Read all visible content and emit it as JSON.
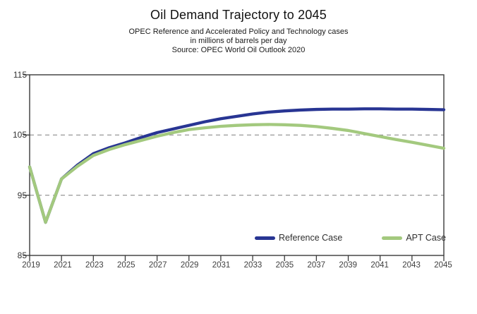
{
  "header": {
    "title": "Oil Demand Trajectory to 2045",
    "subtitle1": "OPEC Reference and Accelerated Policy and Technology cases",
    "subtitle2": "in millions of barrels per day",
    "subtitle3": "Source: OPEC World Oil Outlook 2020"
  },
  "colors": {
    "reference": "#283593",
    "apt": "#a3c97e",
    "grid": "#8c8c8c",
    "frame": "#3a3a3a",
    "tick_text": "#3f3f3f"
  },
  "chart_data": {
    "type": "line",
    "title": "Oil Demand Trajectory to 2045",
    "subtitle": "OPEC Reference and Accelerated Policy and Technology cases, in millions of barrels per day. Source: OPEC World Oil Outlook 2020",
    "xlabel": "",
    "ylabel": "millions of barrels per day",
    "x": [
      2019,
      2020,
      2021,
      2022,
      2023,
      2024,
      2025,
      2026,
      2027,
      2028,
      2029,
      2030,
      2031,
      2032,
      2033,
      2034,
      2035,
      2036,
      2037,
      2038,
      2039,
      2040,
      2041,
      2042,
      2043,
      2044,
      2045
    ],
    "series": [
      {
        "name": "Reference Case",
        "color_key": "reference",
        "values": [
          99.7,
          90.5,
          97.7,
          100.0,
          101.9,
          102.9,
          103.7,
          104.6,
          105.4,
          106.0,
          106.6,
          107.2,
          107.7,
          108.1,
          108.5,
          108.8,
          109.0,
          109.15,
          109.25,
          109.3,
          109.3,
          109.35,
          109.35,
          109.3,
          109.3,
          109.25,
          109.2
        ]
      },
      {
        "name": "APT Case",
        "color_key": "apt",
        "values": [
          99.7,
          90.5,
          97.7,
          99.8,
          101.6,
          102.6,
          103.4,
          104.1,
          104.8,
          105.4,
          105.9,
          106.2,
          106.45,
          106.6,
          106.7,
          106.75,
          106.7,
          106.6,
          106.4,
          106.1,
          105.75,
          105.25,
          104.75,
          104.25,
          103.8,
          103.3,
          102.8
        ]
      }
    ],
    "xlim": [
      2019,
      2045
    ],
    "ylim": [
      85,
      115
    ],
    "xticks": [
      2019,
      2021,
      2023,
      2025,
      2027,
      2029,
      2031,
      2033,
      2035,
      2037,
      2039,
      2041,
      2043,
      2045
    ],
    "yticks": [
      85,
      95,
      105,
      115
    ],
    "dashed_gridlines_at": [
      95,
      105
    ],
    "grid": "horizontal-dashed",
    "legend_position": "inside-bottom-right"
  },
  "x_tick_labels": [
    "2019",
    "2021",
    "2023",
    "2025",
    "2027",
    "2029",
    "2031",
    "2033",
    "2035",
    "2037",
    "2039",
    "2041",
    "2043",
    "2045"
  ],
  "y_tick_labels": [
    "115",
    "105",
    "95",
    "85"
  ],
  "legend": {
    "items": [
      {
        "label": "Reference Case"
      },
      {
        "label": "APT Case"
      }
    ]
  }
}
